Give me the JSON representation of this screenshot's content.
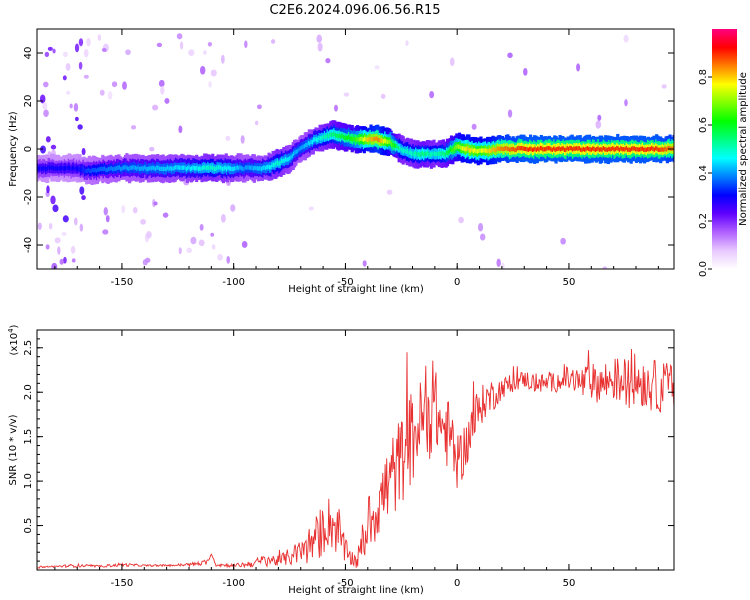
{
  "title": "C2E6.2024.096.06.56.R15",
  "chart_data": [
    {
      "type": "heatmap",
      "xlabel": "Height of straight line (km)",
      "ylabel": "Frequency (Hz)",
      "xlim": [
        -188,
        97
      ],
      "ylim": [
        -50,
        50
      ],
      "x_ticks": [
        -150,
        -100,
        -50,
        0,
        50
      ],
      "y_ticks": [
        -40,
        -20,
        0,
        20,
        40
      ],
      "colorbar": {
        "label": "Normalized spectral amplitude",
        "range": [
          0,
          1
        ],
        "ticks": [
          "0.0",
          "0.2",
          "0.4",
          "0.6",
          "0.8"
        ],
        "colors": [
          "#ffffff",
          "#e8c8ff",
          "#b060ff",
          "#6000ff",
          "#0000ff",
          "#0080ff",
          "#00ffff",
          "#00ff80",
          "#00ff00",
          "#80ff00",
          "#ffff00",
          "#ff8000",
          "#ff0000",
          "#ff0080"
        ]
      },
      "ridge": {
        "x": [
          -188,
          -170,
          -165,
          -150,
          -120,
          -110,
          -100,
          -95,
          -85,
          -80,
          -75,
          -70,
          -65,
          -60,
          -55,
          -50,
          -45,
          -40,
          -35,
          -30,
          -25,
          -20,
          -15,
          -10,
          -5,
          0,
          5,
          10,
          20,
          30,
          50,
          70,
          90,
          97
        ],
        "freq": [
          -8,
          -8,
          -9,
          -8,
          -8,
          -8,
          -8,
          -8,
          -8,
          -6,
          -4,
          0,
          3,
          5,
          6,
          5,
          4,
          4,
          4,
          3,
          0,
          -2,
          -2,
          -2,
          -2,
          1,
          0,
          -1,
          0,
          0,
          0,
          0,
          0,
          0
        ],
        "amplitude": [
          0.3,
          0.3,
          0.35,
          0.4,
          0.45,
          0.5,
          0.45,
          0.4,
          0.45,
          0.5,
          0.45,
          0.4,
          0.45,
          0.5,
          0.55,
          0.6,
          0.65,
          0.8,
          0.85,
          0.7,
          0.5,
          0.5,
          0.55,
          0.5,
          0.55,
          0.7,
          0.8,
          0.75,
          0.85,
          0.9,
          0.9,
          0.9,
          0.9,
          0.85
        ]
      }
    },
    {
      "type": "line",
      "xlabel": "Height of straight line (km)",
      "ylabel": "SNR (10 * v/v)",
      "y_multiplier": "(x10",
      "y_multiplier_exp": "4",
      "y_multiplier_close": ")",
      "xlim": [
        -188,
        97
      ],
      "ylim": [
        0,
        2.7
      ],
      "x_ticks": [
        -150,
        -100,
        -50,
        0,
        50
      ],
      "y_ticks": [
        "0.5",
        "1.0",
        "1.5",
        "2.0",
        "2.5"
      ],
      "color": "#e83030",
      "series": [
        {
          "x": [
            -188,
            -180,
            -170,
            -160,
            -150,
            -140,
            -130,
            -120,
            -112,
            -110,
            -108,
            -100,
            -95,
            -90,
            -85,
            -80,
            -75,
            -70,
            -65,
            -60,
            -58,
            -55,
            -52,
            -50,
            -48,
            -45,
            -42,
            -40,
            -38,
            -35,
            -32,
            -30,
            -28,
            -25,
            -22,
            -20,
            -18,
            -15,
            -12,
            -10,
            -8,
            -5,
            -3,
            0,
            3,
            5,
            8,
            10,
            12,
            15,
            18,
            20,
            25,
            30,
            35,
            40,
            45,
            50,
            55,
            60,
            65,
            70,
            75,
            80,
            85,
            90,
            95,
            97
          ],
          "y": [
            0.03,
            0.04,
            0.05,
            0.04,
            0.06,
            0.05,
            0.05,
            0.06,
            0.08,
            0.18,
            0.06,
            0.05,
            0.06,
            0.08,
            0.12,
            0.1,
            0.15,
            0.2,
            0.3,
            0.45,
            0.55,
            0.5,
            0.35,
            0.2,
            0.15,
            0.1,
            0.3,
            0.5,
            0.6,
            0.75,
            0.9,
            1.0,
            1.1,
            1.25,
            1.4,
            1.5,
            1.6,
            1.7,
            1.75,
            1.85,
            1.65,
            1.55,
            1.5,
            1.2,
            1.35,
            1.5,
            1.7,
            1.8,
            1.9,
            1.95,
            2.0,
            2.05,
            2.1,
            2.15,
            2.1,
            2.1,
            2.12,
            2.15,
            2.1,
            2.12,
            2.1,
            2.15,
            2.1,
            2.15,
            2.1,
            2.05,
            2.1,
            2.05
          ],
          "noise": [
            0.01,
            0.01,
            0.02,
            0.01,
            0.02,
            0.01,
            0.01,
            0.02,
            0.03,
            0.0,
            0.02,
            0.02,
            0.03,
            0.05,
            0.08,
            0.06,
            0.1,
            0.15,
            0.25,
            0.3,
            0.3,
            0.3,
            0.25,
            0.15,
            0.1,
            0.1,
            0.2,
            0.3,
            0.35,
            0.4,
            0.45,
            0.5,
            0.5,
            0.5,
            0.55,
            0.55,
            0.5,
            0.5,
            0.5,
            0.45,
            0.4,
            0.4,
            0.4,
            0.3,
            0.3,
            0.3,
            0.3,
            0.25,
            0.2,
            0.2,
            0.15,
            0.12,
            0.1,
            0.1,
            0.12,
            0.1,
            0.12,
            0.15,
            0.2,
            0.2,
            0.25,
            0.25,
            0.3,
            0.3,
            0.3,
            0.3,
            0.25,
            0.25
          ]
        }
      ]
    }
  ]
}
